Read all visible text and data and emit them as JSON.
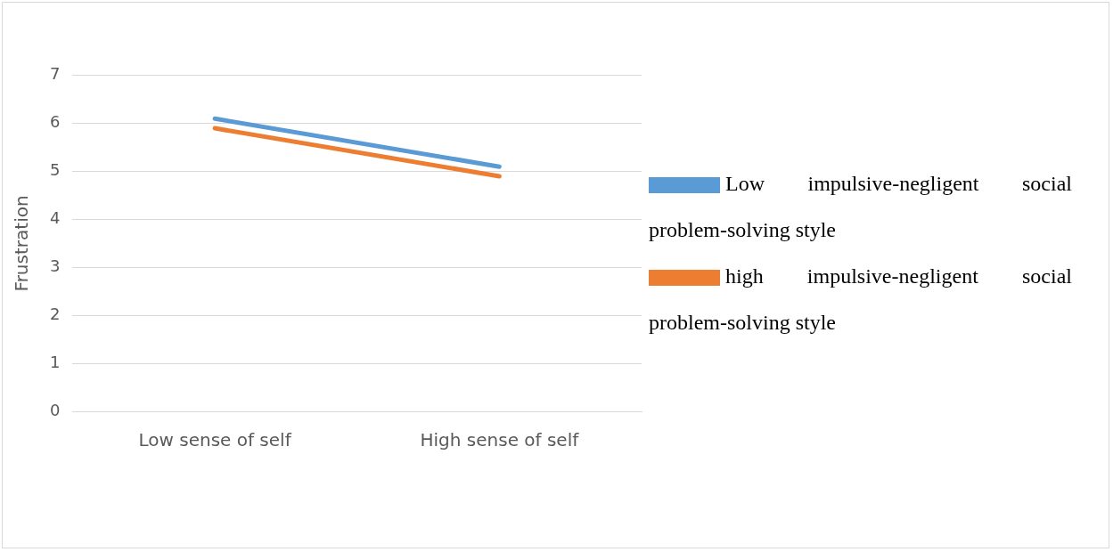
{
  "chart_data": {
    "type": "line",
    "ylabel": "Frustration",
    "categories": [
      "Low sense of self",
      "High sense of self"
    ],
    "series": [
      {
        "name": "Low impulsive-negligent social problem-solving style",
        "color": "#5b9bd5",
        "values": [
          6.1,
          5.1
        ]
      },
      {
        "name": "high impulsive-negligent social problem-solving style",
        "color": "#ed7d31",
        "values": [
          5.9,
          4.9
        ]
      }
    ],
    "ylim": [
      0,
      7
    ],
    "yticks": [
      0,
      1,
      2,
      3,
      4,
      5,
      6,
      7
    ],
    "grid": "y",
    "legend": "right",
    "marker": "none"
  }
}
